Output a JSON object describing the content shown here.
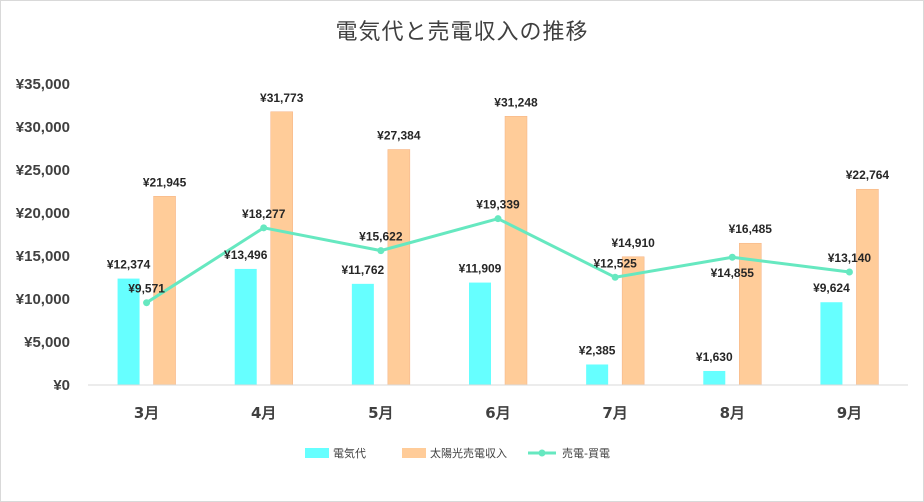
{
  "chart_data": {
    "type": "bar",
    "title": "電気代と売電収入の推移",
    "xlabel": "",
    "ylabel": "",
    "categories": [
      "3月",
      "4月",
      "5月",
      "6月",
      "7月",
      "8月",
      "9月"
    ],
    "ylim": [
      0,
      35000
    ],
    "y_ticks": [
      "¥0",
      "¥5,000",
      "¥10,000",
      "¥15,000",
      "¥20,000",
      "¥25,000",
      "¥30,000",
      "¥35,000"
    ],
    "grid": false,
    "legend_position": "bottom",
    "series": [
      {
        "name": "電気代",
        "kind": "bar",
        "color": "#66ffff",
        "values": [
          12374,
          13496,
          11762,
          11909,
          2385,
          1630,
          9624
        ],
        "labels": [
          "¥12,374",
          "¥13,496",
          "¥11,762",
          "¥11,909",
          "¥2,385",
          "¥1,630",
          "¥9,624"
        ]
      },
      {
        "name": "太陽光売電収入",
        "kind": "bar",
        "color": "#ffcc99",
        "values": [
          21945,
          31773,
          27384,
          31248,
          14910,
          16485,
          22764
        ],
        "labels": [
          "¥21,945",
          "¥31,773",
          "¥27,384",
          "¥31,248",
          "¥14,910",
          "¥16,485",
          "¥22,764"
        ]
      },
      {
        "name": "売電-買電",
        "kind": "line",
        "color": "#66e8c0",
        "values": [
          9571,
          18277,
          15622,
          19339,
          12525,
          14855,
          13140
        ],
        "labels": [
          "¥9,571",
          "¥18,277",
          "¥15,622",
          "¥19,339",
          "¥12,525",
          "¥14,855",
          "¥13,140"
        ]
      }
    ]
  }
}
